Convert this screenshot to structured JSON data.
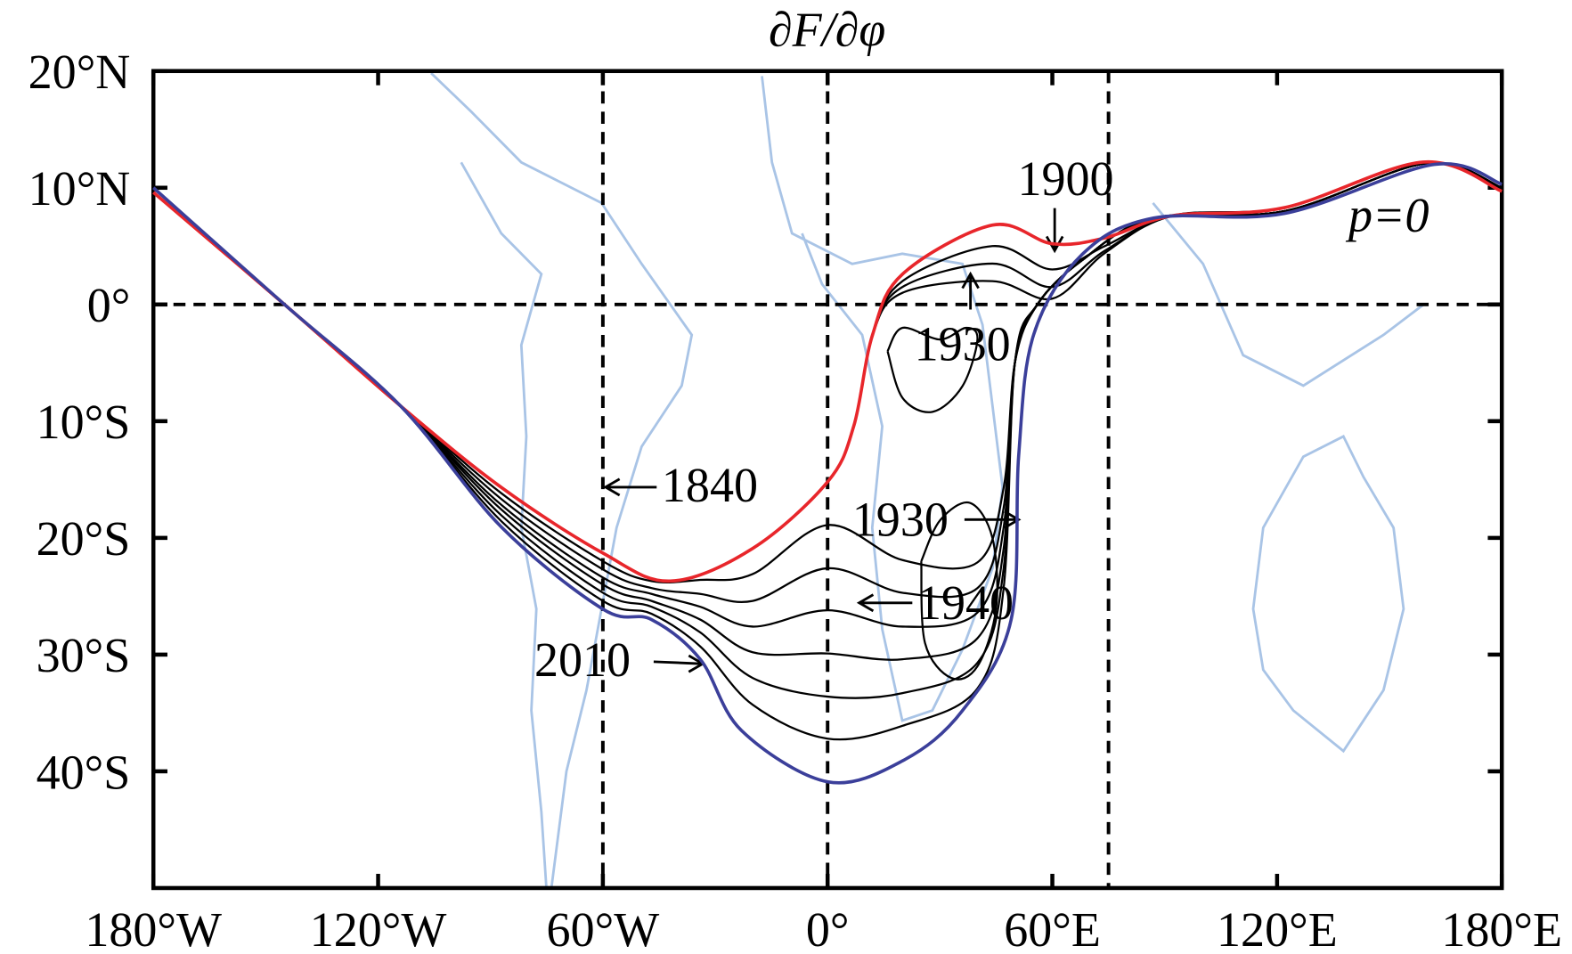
{
  "chart_data": {
    "type": "line",
    "title": "∂F/∂φ",
    "xlim": [
      -180,
      180
    ],
    "ylim": [
      -50,
      20
    ],
    "xticks": [
      {
        "value": -180,
        "label": "180°W"
      },
      {
        "value": -120,
        "label": "120°W"
      },
      {
        "value": -60,
        "label": "60°W"
      },
      {
        "value": 0,
        "label": "0°"
      },
      {
        "value": 60,
        "label": "60°E"
      },
      {
        "value": 120,
        "label": "120°E"
      },
      {
        "value": 180,
        "label": "180°E"
      }
    ],
    "yticks": [
      {
        "value": 20,
        "label": "20°N"
      },
      {
        "value": 10,
        "label": "10°N"
      },
      {
        "value": 0,
        "label": "0°"
      },
      {
        "value": -10,
        "label": "10°S"
      },
      {
        "value": -20,
        "label": "20°S"
      },
      {
        "value": -30,
        "label": "30°S"
      },
      {
        "value": -40,
        "label": "40°S"
      }
    ],
    "vlines": [
      -60,
      0,
      75
    ],
    "hlines": [
      0
    ],
    "annotations": [
      "1900",
      "1930",
      "1840",
      "1930",
      "1940",
      "2010",
      "p=0"
    ],
    "series": [
      {
        "color": "#000000",
        "x": [
          -180,
          -145,
          -114,
          -87,
          -60,
          -47,
          -34,
          -20,
          0,
          20,
          40,
          47,
          50,
          56,
          68,
          87,
          122,
          160,
          180
        ],
        "values": [
          10,
          0,
          -8.7,
          -16.2,
          -22.0,
          -23.7,
          -23.6,
          -23.1,
          -18.9,
          -21.9,
          -22.1,
          -15.7,
          -5,
          0,
          3.8,
          7.4,
          8.0,
          12.1,
          10.0
        ]
      },
      {
        "color": "#000000",
        "x": [
          -180,
          -145,
          -114,
          -87,
          -60,
          -47,
          -34,
          -20,
          0,
          20,
          40,
          47,
          50,
          56,
          68,
          87,
          122,
          160,
          180
        ],
        "values": [
          10,
          0,
          -8.7,
          -16.7,
          -22.7,
          -24.3,
          -24.8,
          -25.4,
          -22.6,
          -24.7,
          -24.3,
          -17.4,
          -5,
          0,
          3.8,
          7.4,
          8.0,
          12.1,
          10.0
        ]
      },
      {
        "color": "#000000",
        "x": [
          -180,
          -145,
          -114,
          -87,
          -60,
          -47,
          -34,
          -20,
          0,
          20,
          40,
          47,
          50,
          56,
          68,
          87,
          122,
          160,
          180
        ],
        "values": [
          10,
          0,
          -8.7,
          -17.2,
          -23.4,
          -24.8,
          -25.9,
          -27.6,
          -26.2,
          -27.6,
          -26.4,
          -19.1,
          -5,
          0,
          3.8,
          7.4,
          8.0,
          12.1,
          10.0
        ]
      },
      {
        "color": "#000000",
        "x": [
          -180,
          -145,
          -114,
          -87,
          -60,
          -47,
          -34,
          -20,
          0,
          20,
          40,
          47,
          50,
          56,
          68,
          87,
          122,
          160,
          180
        ],
        "values": [
          10,
          0,
          -8.7,
          -17.6,
          -24.0,
          -25.4,
          -27.0,
          -29.8,
          -29.9,
          -30.4,
          -28.6,
          -20.9,
          -5,
          0,
          3.8,
          7.4,
          8.0,
          12.1,
          10.0
        ]
      },
      {
        "color": "#000000",
        "x": [
          -180,
          -145,
          -114,
          -87,
          -60,
          -47,
          -34,
          -20,
          0,
          20,
          40,
          47,
          50,
          56,
          68,
          87,
          122,
          160,
          180
        ],
        "values": [
          10,
          0,
          -8.7,
          -18.1,
          -24.7,
          -25.9,
          -28.1,
          -32.0,
          -33.6,
          -33.3,
          -30.7,
          -22.6,
          -5,
          0,
          3.8,
          7.4,
          8.0,
          12.1,
          10.0
        ]
      },
      {
        "color": "#000000",
        "x": [
          -180,
          -145,
          -114,
          -87,
          -60,
          -47,
          -34,
          -20,
          0,
          20,
          40,
          47,
          50,
          56,
          68,
          87,
          122,
          160,
          180
        ],
        "values": [
          10,
          0,
          -8.7,
          -18.6,
          -25.4,
          -26.5,
          -29.3,
          -34.3,
          -37.2,
          -36.1,
          -32.9,
          -24.3,
          -5,
          0,
          3.8,
          7.4,
          8.0,
          12.1,
          10.0
        ]
      },
      {
        "color": "#000000",
        "x": [
          -180,
          -145,
          -114,
          -87,
          -60,
          -42,
          -20,
          0,
          7,
          12,
          20,
          44,
          60,
          74,
          92,
          122,
          159,
          180
        ],
        "values": [
          9.6,
          0,
          -8.7,
          -15.7,
          -21.3,
          -23.7,
          -20.9,
          -15.2,
          -10.4,
          -2.6,
          2.0,
          5.0,
          3.0,
          5.0,
          7.6,
          8.3,
          12.2,
          9.8
        ]
      },
      {
        "color": "#000000",
        "x": [
          -180,
          -145,
          -114,
          -87,
          -60,
          -42,
          -20,
          0,
          7,
          12,
          20,
          44,
          60,
          74,
          92,
          122,
          159,
          180
        ],
        "values": [
          9.6,
          0,
          -8.7,
          -15.7,
          -21.3,
          -23.7,
          -20.9,
          -15.2,
          -10.4,
          -2.6,
          1.5,
          3.5,
          1.5,
          4.6,
          7.6,
          8.3,
          12.2,
          9.8
        ]
      },
      {
        "color": "#000000",
        "x": [
          -180,
          -145,
          -114,
          -87,
          -60,
          -42,
          -20,
          0,
          7,
          12,
          20,
          44,
          60,
          74,
          92,
          122,
          159,
          180
        ],
        "values": [
          9.6,
          0,
          -8.7,
          -15.7,
          -21.3,
          -23.7,
          -20.9,
          -15.2,
          -10.4,
          -2.6,
          1.0,
          2.0,
          0.5,
          4.4,
          7.6,
          8.3,
          12.2,
          9.8
        ]
      },
      {
        "color": "#000000",
        "x": [
          16,
          20,
          28,
          36,
          40,
          37,
          30,
          20,
          16
        ],
        "values": [
          -4,
          -8,
          -9.2,
          -7,
          -3,
          -2,
          -3,
          -2,
          -4
        ]
      },
      {
        "color": "#000000",
        "x": [
          25,
          30,
          38,
          44,
          45,
          40,
          33,
          26,
          25
        ],
        "values": [
          -22,
          -18.5,
          -17,
          -20,
          -26,
          -31,
          -32,
          -29,
          -22
        ]
      },
      {
        "color": "#e8262b",
        "x": [
          -180,
          -145,
          -114,
          -87,
          -60,
          -42,
          -20,
          0,
          7,
          12,
          20,
          44,
          60,
          74,
          92,
          122,
          159,
          180
        ],
        "values": [
          9.6,
          0,
          -8.7,
          -15.7,
          -21.3,
          -23.7,
          -20.9,
          -15.2,
          -10.4,
          -2.6,
          2.6,
          6.8,
          5.2,
          5.7,
          7.6,
          8.3,
          12.2,
          9.7
        ]
      },
      {
        "color": "#3b3f9a",
        "x": [
          -180,
          -145,
          -114,
          -87,
          -60,
          -47,
          -34,
          -23,
          0,
          20,
          36,
          49,
          51,
          55,
          68,
          87,
          122,
          162,
          180
        ],
        "values": [
          10,
          0,
          -8.7,
          -19.1,
          -26.1,
          -27,
          -30.4,
          -36.5,
          -40.9,
          -39.1,
          -34.8,
          -27,
          -13,
          -2.6,
          4.3,
          7.4,
          7.8,
          12,
          10.3
        ]
      }
    ]
  }
}
